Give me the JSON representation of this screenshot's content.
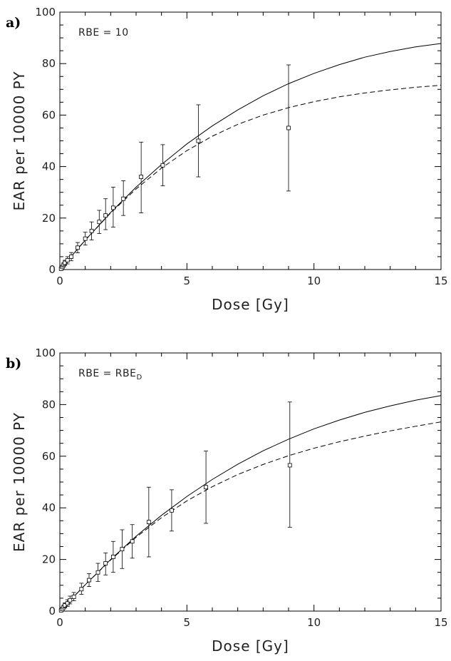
{
  "chart_data": [
    {
      "type": "scatter",
      "panel_label": "a)",
      "annotation": "RBE = 10",
      "annotation_sub": "",
      "xlabel": "Dose [Gy]",
      "ylabel": "EAR per 10000 PY",
      "xlim": [
        0,
        15
      ],
      "ylim": [
        0,
        100
      ],
      "xticks": [
        0,
        5,
        10,
        15
      ],
      "yticks": [
        0,
        20,
        40,
        60,
        80,
        100
      ],
      "grid": false,
      "points": [
        {
          "x": 0.05,
          "y": 0.3,
          "lo": 0.0,
          "hi": 0.6
        },
        {
          "x": 0.1,
          "y": 1.0,
          "lo": 0.5,
          "hi": 1.6
        },
        {
          "x": 0.15,
          "y": 1.8,
          "lo": 1.0,
          "hi": 2.6
        },
        {
          "x": 0.2,
          "y": 2.6,
          "lo": 1.6,
          "hi": 3.6
        },
        {
          "x": 0.3,
          "y": 3.6,
          "lo": 2.2,
          "hi": 5.0
        },
        {
          "x": 0.45,
          "y": 5.0,
          "lo": 3.4,
          "hi": 6.6
        },
        {
          "x": 0.7,
          "y": 8.5,
          "lo": 6.5,
          "hi": 10.5
        },
        {
          "x": 1.0,
          "y": 12.0,
          "lo": 9.5,
          "hi": 14.5
        },
        {
          "x": 1.25,
          "y": 15.0,
          "lo": 11.5,
          "hi": 18.5
        },
        {
          "x": 1.55,
          "y": 18.5,
          "lo": 14.0,
          "hi": 23.0
        },
        {
          "x": 1.8,
          "y": 21.0,
          "lo": 15.5,
          "hi": 27.5
        },
        {
          "x": 2.1,
          "y": 24.0,
          "lo": 16.5,
          "hi": 32.0
        },
        {
          "x": 2.5,
          "y": 27.5,
          "lo": 21.0,
          "hi": 34.5
        },
        {
          "x": 3.2,
          "y": 36.0,
          "lo": 22.0,
          "hi": 49.5
        },
        {
          "x": 4.05,
          "y": 40.5,
          "lo": 32.5,
          "hi": 48.5
        },
        {
          "x": 5.45,
          "y": 50.0,
          "lo": 36.0,
          "hi": 64.0
        },
        {
          "x": 9.0,
          "y": 55.0,
          "lo": 30.5,
          "hi": 79.5
        }
      ],
      "curves": [
        {
          "style": "solid",
          "x": [
            0,
            1,
            2,
            3,
            4,
            5,
            6,
            7,
            8,
            9,
            10,
            11,
            12,
            13,
            14,
            15
          ],
          "y": [
            0,
            11.4,
            22.2,
            32.0,
            40.8,
            48.8,
            55.8,
            62.0,
            67.5,
            72.2,
            76.2,
            79.6,
            82.5,
            84.7,
            86.5,
            87.8
          ]
        },
        {
          "style": "dashed",
          "x": [
            0,
            1,
            2,
            3,
            4,
            5,
            6,
            7,
            8,
            9,
            10,
            11,
            12,
            13,
            14,
            15
          ],
          "y": [
            0,
            11.4,
            22.0,
            31.3,
            39.4,
            46.2,
            51.8,
            56.4,
            60.0,
            62.9,
            65.2,
            67.1,
            68.6,
            69.8,
            70.8,
            71.6
          ]
        }
      ]
    },
    {
      "type": "scatter",
      "panel_label": "b)",
      "annotation": "RBE = RBE",
      "annotation_sub": "D",
      "xlabel": "Dose [Gy]",
      "ylabel": "EAR per 10000 PY",
      "xlim": [
        0,
        15
      ],
      "ylim": [
        0,
        100
      ],
      "xticks": [
        0,
        5,
        10,
        15
      ],
      "yticks": [
        0,
        20,
        40,
        60,
        80,
        100
      ],
      "grid": false,
      "points": [
        {
          "x": 0.05,
          "y": 0.3,
          "lo": 0.0,
          "hi": 0.6
        },
        {
          "x": 0.1,
          "y": 0.8,
          "lo": 0.4,
          "hi": 1.4
        },
        {
          "x": 0.15,
          "y": 1.5,
          "lo": 0.8,
          "hi": 2.3
        },
        {
          "x": 0.2,
          "y": 2.2,
          "lo": 1.3,
          "hi": 3.2
        },
        {
          "x": 0.3,
          "y": 3.0,
          "lo": 1.8,
          "hi": 4.4
        },
        {
          "x": 0.4,
          "y": 4.2,
          "lo": 2.8,
          "hi": 5.8
        },
        {
          "x": 0.55,
          "y": 5.5,
          "lo": 4.0,
          "hi": 7.2
        },
        {
          "x": 0.85,
          "y": 8.5,
          "lo": 6.5,
          "hi": 10.8
        },
        {
          "x": 1.15,
          "y": 12.0,
          "lo": 9.5,
          "hi": 14.5
        },
        {
          "x": 1.5,
          "y": 15.0,
          "lo": 11.5,
          "hi": 18.5
        },
        {
          "x": 1.8,
          "y": 18.5,
          "lo": 14.0,
          "hi": 22.5
        },
        {
          "x": 2.1,
          "y": 21.0,
          "lo": 15.0,
          "hi": 27.0
        },
        {
          "x": 2.45,
          "y": 24.0,
          "lo": 16.5,
          "hi": 31.5
        },
        {
          "x": 2.85,
          "y": 27.0,
          "lo": 20.5,
          "hi": 33.5
        },
        {
          "x": 3.5,
          "y": 34.5,
          "lo": 21.0,
          "hi": 48.0
        },
        {
          "x": 4.4,
          "y": 39.0,
          "lo": 31.0,
          "hi": 47.0
        },
        {
          "x": 5.75,
          "y": 48.0,
          "lo": 34.0,
          "hi": 62.0
        },
        {
          "x": 9.05,
          "y": 56.5,
          "lo": 32.5,
          "hi": 81.0
        }
      ],
      "curves": [
        {
          "style": "solid",
          "x": [
            0,
            1,
            2,
            3,
            4,
            5,
            6,
            7,
            8,
            9,
            10,
            11,
            12,
            13,
            14,
            15
          ],
          "y": [
            0,
            10.2,
            20.0,
            29.0,
            37.1,
            44.4,
            51.0,
            56.9,
            62.1,
            66.6,
            70.6,
            74.0,
            77.0,
            79.5,
            81.7,
            83.5
          ]
        },
        {
          "style": "dashed",
          "x": [
            0,
            1,
            2,
            3,
            4,
            5,
            6,
            7,
            8,
            9,
            10,
            11,
            12,
            13,
            14,
            15
          ],
          "y": [
            0,
            10.2,
            19.8,
            28.6,
            36.2,
            42.7,
            48.2,
            52.9,
            56.8,
            60.2,
            63.1,
            65.6,
            67.8,
            69.8,
            71.6,
            73.3
          ]
        }
      ]
    }
  ]
}
